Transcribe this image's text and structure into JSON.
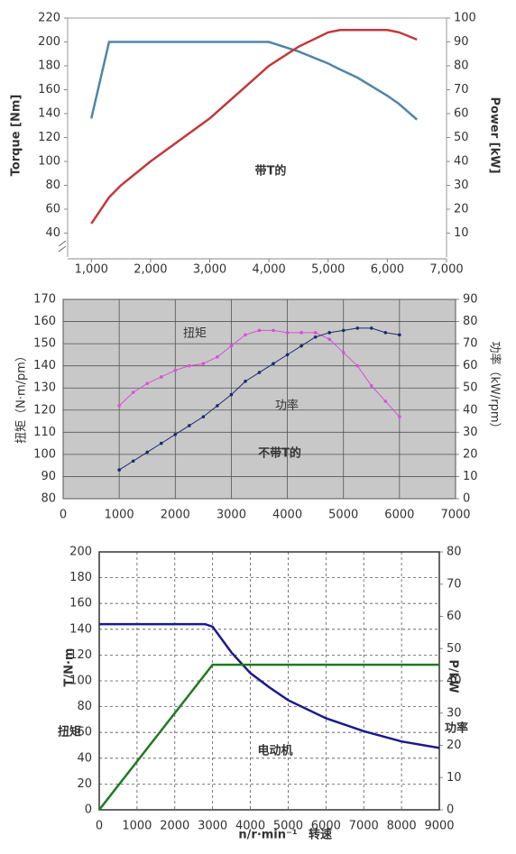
{
  "chart_data": [
    {
      "type": "line",
      "title": "带T的",
      "y_label": "Torque [Nm]",
      "y2_label": "Power [kW]",
      "x": [
        1000,
        1300,
        1500,
        2000,
        2500,
        3000,
        3500,
        4000,
        4500,
        5000,
        5200,
        5500,
        6000,
        6200,
        6500
      ],
      "xlim": [
        600,
        7000
      ],
      "xticks": [
        {
          "value": 1000,
          "label": "1,000"
        },
        {
          "value": 2000,
          "label": "2,000"
        },
        {
          "value": 3000,
          "label": "3,000"
        },
        {
          "value": 4000,
          "label": "4,000"
        },
        {
          "value": 5000,
          "label": "5,000"
        },
        {
          "value": 6000,
          "label": "6,000"
        },
        {
          "value": 7000,
          "label": "7,000"
        }
      ],
      "ylim": [
        20,
        220
      ],
      "yticks": [
        40,
        60,
        80,
        100,
        120,
        140,
        160,
        180,
        200,
        220
      ],
      "y2lim": [
        0,
        100
      ],
      "y2ticks": [
        10,
        20,
        30,
        40,
        50,
        60,
        70,
        80,
        90,
        100
      ],
      "grid": false,
      "series": [
        {
          "color": "#4f86a8",
          "values": [
            136,
            200,
            200,
            200,
            200,
            200,
            200,
            200,
            192,
            182,
            177,
            170,
            155,
            148,
            135
          ]
        },
        {
          "color": "#c0393b",
          "axis": "y2",
          "values": [
            14,
            25,
            30,
            40,
            49,
            58,
            69,
            80,
            88,
            94,
            95,
            95,
            95,
            94,
            91
          ]
        }
      ]
    },
    {
      "type": "line",
      "title": "不带T的",
      "y_label": "扭矩（N·m/pm）",
      "y2_label": "功率（kW/rpm）",
      "annotations": [
        "扭矩",
        "功率"
      ],
      "x": [
        1000,
        1250,
        1500,
        1750,
        2000,
        2250,
        2500,
        2750,
        3000,
        3250,
        3500,
        3750,
        4000,
        4250,
        4500,
        4750,
        5000,
        5250,
        5500,
        5750,
        6000
      ],
      "xlim": [
        0,
        7000
      ],
      "xticks": [
        0,
        1000,
        2000,
        3000,
        4000,
        5000,
        6000,
        7000
      ],
      "ylim": [
        80,
        170
      ],
      "yticks": [
        80,
        90,
        100,
        110,
        120,
        130,
        140,
        150,
        160,
        170
      ],
      "y2lim": [
        0,
        90
      ],
      "y2ticks": [
        0,
        10,
        20,
        30,
        40,
        50,
        60,
        70,
        80,
        90
      ],
      "grid": true,
      "background": "#c8c8c8",
      "markers": true,
      "series": [
        {
          "color": "#d94fd9",
          "values": [
            122,
            128,
            132,
            135,
            138,
            140,
            141,
            144,
            149,
            154,
            156,
            156,
            155,
            155,
            155,
            152,
            146,
            140,
            131,
            124,
            117
          ]
        },
        {
          "color": "#1a2a6a",
          "axis": "y2",
          "values": [
            13,
            17,
            21,
            25,
            29,
            33,
            37,
            42,
            47,
            53,
            57,
            61,
            65,
            69,
            73,
            75,
            76,
            77,
            77,
            75,
            74
          ]
        }
      ]
    },
    {
      "type": "line",
      "title": "电动机",
      "y_label": "T/N·m",
      "y_label_cn": "扭矩",
      "y2_label": "P/kW",
      "y2_label_cn": "功率",
      "x_label": "n/r·min⁻¹",
      "x_label_cn": "转速",
      "x": [
        0,
        1000,
        2000,
        2800,
        3000,
        3500,
        4000,
        4500,
        5000,
        6000,
        7000,
        8000,
        9000
      ],
      "xlim": [
        0,
        9000
      ],
      "xticks": [
        0,
        1000,
        2000,
        3000,
        4000,
        5000,
        6000,
        7000,
        8000,
        9000
      ],
      "ylim": [
        0,
        200
      ],
      "yticks": [
        0,
        20,
        40,
        60,
        80,
        100,
        120,
        140,
        160,
        180,
        200
      ],
      "y2lim": [
        0,
        80
      ],
      "y2ticks": [
        0,
        10,
        20,
        30,
        40,
        50,
        60,
        70,
        80
      ],
      "grid": true,
      "grid_style": "dashed",
      "series": [
        {
          "color": "#1a1a8c",
          "values": [
            144,
            144,
            144,
            144,
            142,
            122,
            106,
            95,
            85,
            71,
            61,
            53,
            48
          ]
        },
        {
          "color": "#1f7a1f",
          "axis": "y2",
          "values": [
            0,
            15,
            30,
            42,
            45,
            45,
            45,
            45,
            45,
            45,
            45,
            45,
            45
          ]
        }
      ]
    }
  ]
}
